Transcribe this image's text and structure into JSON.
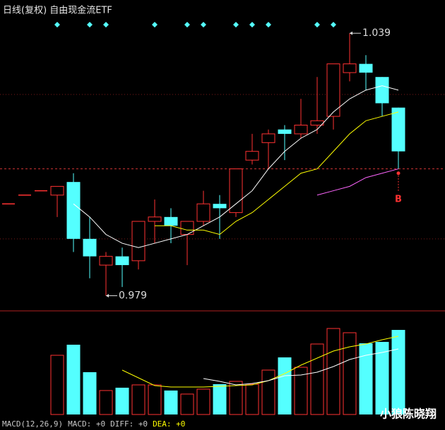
{
  "chart_data": {
    "type": "candlestick",
    "title": "日线(复权)  自由现金流ETF",
    "up_color": "#ff3232",
    "down_color": "#54ffff",
    "open": [
      1.0,
      1.002,
      1.003,
      1.002,
      1.005,
      0.992,
      0.986,
      0.988,
      0.987,
      0.996,
      0.997,
      0.993,
      0.996,
      1.0,
      0.998,
      1.01,
      1.014,
      1.017,
      1.016,
      1.018,
      1.02,
      1.03,
      1.032,
      1.029,
      1.022
    ],
    "high": [
      1.0,
      1.002,
      1.003,
      1.004,
      1.007,
      0.997,
      0.989,
      0.99,
      0.996,
      1.001,
      0.999,
      0.996,
      1.003,
      1.002,
      1.008,
      1.016,
      1.017,
      1.018,
      1.024,
      1.029,
      1.032,
      1.039,
      1.034,
      1.029,
      1.022
    ],
    "low": [
      1.0,
      1.002,
      1.003,
      0.997,
      0.989,
      0.983,
      0.979,
      0.981,
      0.985,
      0.991,
      0.991,
      0.986,
      0.995,
      0.992,
      0.997,
      1.009,
      1.008,
      1.01,
      1.015,
      1.016,
      1.017,
      1.028,
      1.026,
      1.02,
      1.008
    ],
    "close": [
      1.0,
      1.002,
      1.003,
      1.004,
      0.992,
      0.988,
      0.988,
      0.986,
      0.996,
      0.997,
      0.995,
      0.996,
      1.0,
      0.999,
      1.008,
      1.012,
      1.016,
      1.016,
      1.018,
      1.019,
      1.032,
      1.032,
      1.03,
      1.023,
      1.012
    ],
    "ylim": [
      0.9757,
      1.0466
    ],
    "grid_lines": [
      1.025,
      0.992
    ],
    "ref_line": 1.008,
    "ma": [
      {
        "color": "#ffffff",
        "values": [
          null,
          null,
          null,
          null,
          1.0,
          0.997,
          0.993,
          0.991,
          0.99,
          0.991,
          0.992,
          0.993,
          0.995,
          0.997,
          1.0,
          1.003,
          1.008,
          1.012,
          1.015,
          1.017,
          1.021,
          1.024,
          1.026,
          1.027,
          1.026
        ]
      },
      {
        "color": "#ffff00",
        "values": [
          null,
          null,
          null,
          null,
          null,
          null,
          null,
          null,
          null,
          0.995,
          0.995,
          0.994,
          0.994,
          0.993,
          0.996,
          0.998,
          1.001,
          1.004,
          1.007,
          1.008,
          1.012,
          1.016,
          1.019,
          1.02,
          1.021
        ]
      },
      {
        "color": "#ff66ff",
        "values": [
          null,
          null,
          null,
          null,
          null,
          null,
          null,
          null,
          null,
          null,
          null,
          null,
          null,
          null,
          null,
          null,
          null,
          null,
          null,
          1.002,
          1.003,
          1.004,
          1.006,
          1.007,
          1.008
        ]
      }
    ],
    "signal_indices": [
      3,
      5,
      6,
      9,
      11,
      12,
      14,
      15,
      16,
      19,
      20
    ],
    "signal_color": "#54ffff",
    "annotations": [
      {
        "label": "1.039",
        "value": 1.039,
        "index": 21
      },
      {
        "label": "0.979",
        "value": 0.979,
        "index": 6
      }
    ],
    "marker": {
      "label": "B",
      "index": 24,
      "value": 1.007,
      "color": "#ff3232"
    },
    "volume": {
      "values": [
        null,
        null,
        null,
        84,
        99,
        60,
        34,
        38,
        42,
        42,
        34,
        29,
        36,
        43,
        47,
        43,
        63,
        81,
        67,
        100,
        122,
        116,
        101,
        103,
        120
      ],
      "ylim": [
        0,
        140
      ],
      "ma": [
        {
          "color": "#ffff00",
          "values": [
            null,
            null,
            null,
            null,
            null,
            null,
            null,
            63,
            52,
            41,
            39,
            39,
            39,
            40,
            41,
            42,
            48,
            58,
            70,
            80,
            90,
            96,
            100,
            106,
            111
          ]
        },
        {
          "color": "#ffffff",
          "values": [
            null,
            null,
            null,
            null,
            null,
            null,
            null,
            null,
            null,
            null,
            null,
            null,
            51,
            47,
            42,
            44,
            48,
            55,
            56,
            60,
            68,
            78,
            84,
            88,
            93
          ]
        }
      ]
    },
    "footer": [
      {
        "text": "MACD(12,26,9)",
        "color": "#c8c8c8"
      },
      {
        "text": "MACD: +0",
        "color": "#c8c8c8"
      },
      {
        "text": "DIFF: +0",
        "color": "#c8c8c8"
      },
      {
        "text": "DEA: +0",
        "color": "#ffff00"
      }
    ],
    "watermark": "小狼陈晓翔"
  }
}
